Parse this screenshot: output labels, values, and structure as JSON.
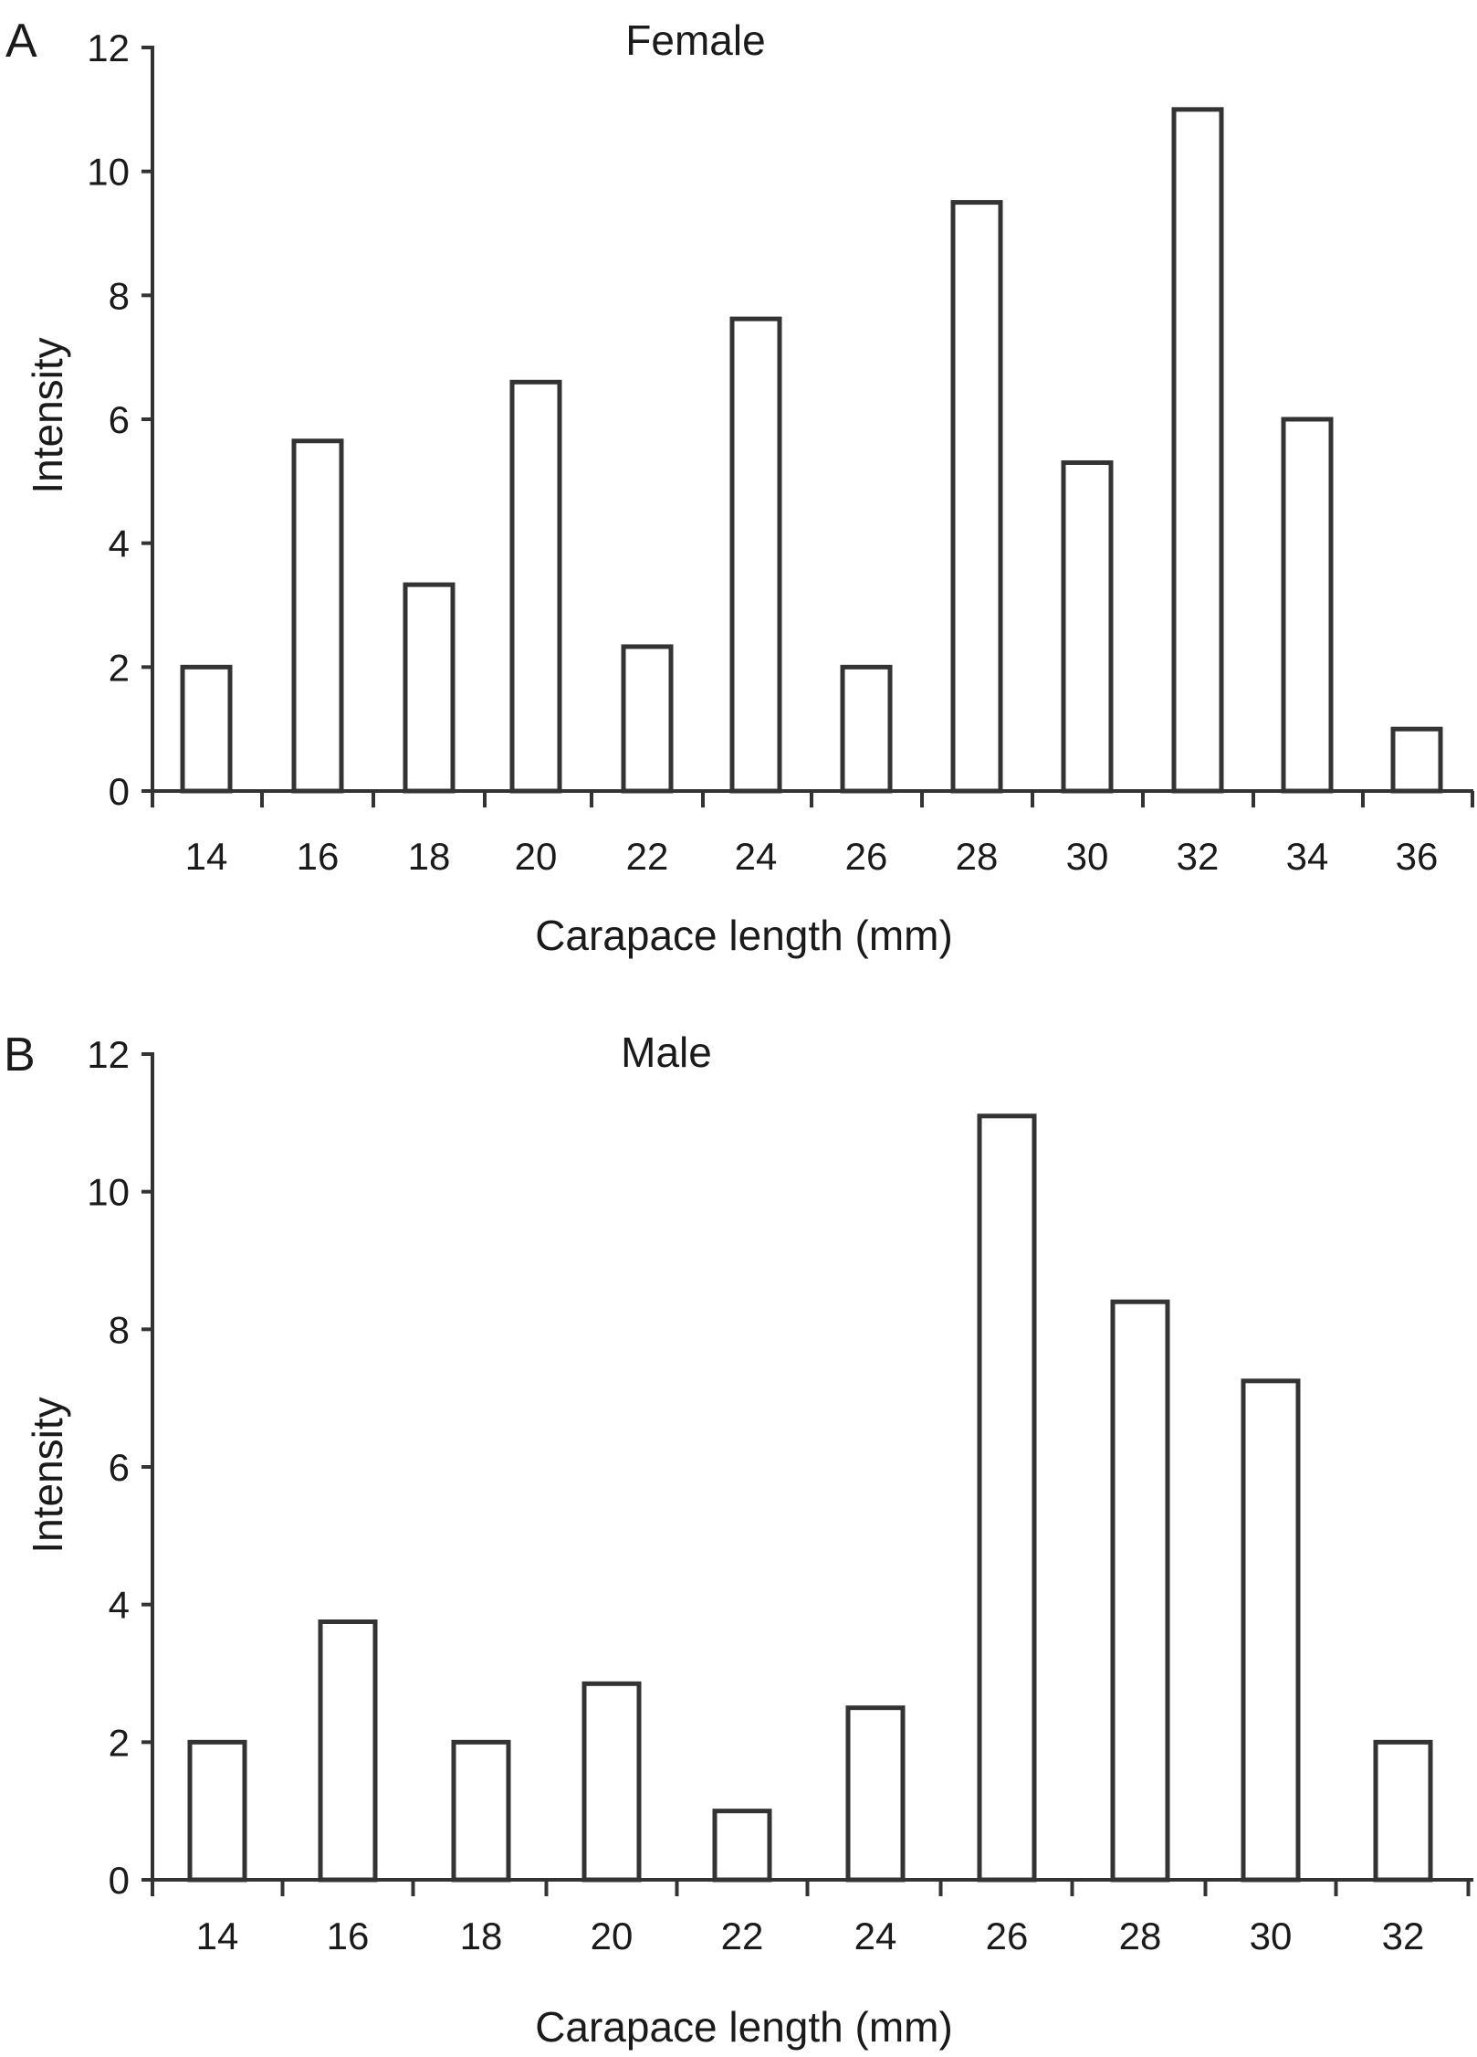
{
  "chart_data": [
    {
      "type": "bar",
      "panel_label": "A",
      "title": "Female",
      "xlabel": "Carapace length (mm)",
      "ylabel": "Intensity",
      "categories": [
        "14",
        "16",
        "18",
        "20",
        "22",
        "24",
        "26",
        "28",
        "30",
        "32",
        "34",
        "36"
      ],
      "values": [
        2.0,
        5.65,
        3.33,
        6.6,
        2.33,
        7.62,
        2.0,
        9.5,
        5.3,
        11.0,
        6.0,
        1.0
      ],
      "ylim": [
        0,
        12
      ],
      "yticks": [
        0,
        2,
        4,
        6,
        8,
        10,
        12
      ],
      "grid": false,
      "bar_fill": "#ffffff",
      "bar_stroke": "#333333"
    },
    {
      "type": "bar",
      "panel_label": "B",
      "title": "Male",
      "xlabel": "Carapace length (mm)",
      "ylabel": "Intensity",
      "categories": [
        "14",
        "16",
        "18",
        "20",
        "22",
        "24",
        "26",
        "28",
        "30",
        "32"
      ],
      "values": [
        2.0,
        3.75,
        2.0,
        2.85,
        1.0,
        2.5,
        11.1,
        8.4,
        7.25,
        2.0
      ],
      "ylim": [
        0,
        12
      ],
      "yticks": [
        0,
        2,
        4,
        6,
        8,
        10,
        12
      ],
      "grid": false,
      "bar_fill": "#ffffff",
      "bar_stroke": "#333333"
    }
  ]
}
